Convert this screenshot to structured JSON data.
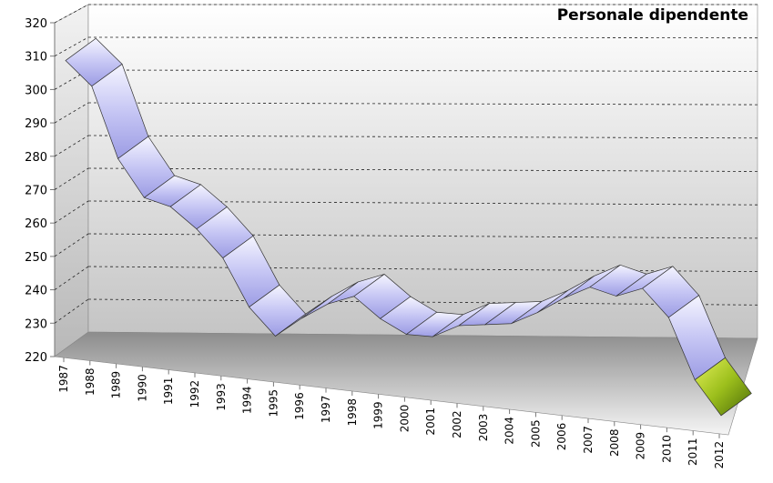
{
  "chart_data": {
    "type": "line",
    "title": "Personale dipendente",
    "xlabel": "",
    "ylabel": "",
    "ylim": [
      220,
      320
    ],
    "yticks": [
      220,
      230,
      240,
      250,
      260,
      270,
      280,
      290,
      300,
      310,
      320
    ],
    "categories": [
      "1987",
      "1988",
      "1989",
      "1990",
      "1991",
      "1992",
      "1993",
      "1994",
      "1995",
      "1996",
      "1997",
      "1998",
      "1999",
      "2000",
      "2001",
      "2002",
      "2003",
      "2004",
      "2005",
      "2006",
      "2007",
      "2008",
      "2009",
      "2010",
      "2011",
      "2012"
    ],
    "series": [
      {
        "values": [
          309,
          302,
          281,
          270,
          268,
          262,
          254,
          240,
          232,
          238,
          243,
          246,
          240,
          236,
          236,
          240,
          241,
          242,
          246,
          251,
          255,
          253,
          256,
          248,
          230,
          220
        ],
        "color": "#c8c8f5",
        "highlight_last_color": "#9cbf1c"
      }
    ],
    "grid": true,
    "legend": "none",
    "style": "3d-ribbon"
  }
}
